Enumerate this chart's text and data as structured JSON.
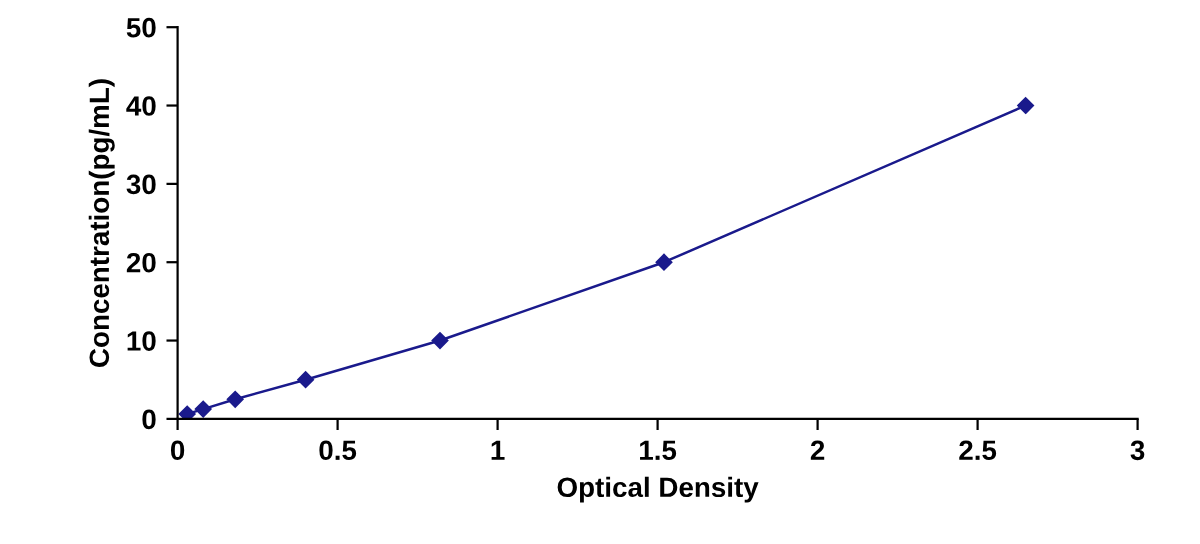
{
  "chart_data": {
    "type": "line",
    "xlabel": "Optical Density",
    "ylabel": "Concentration(pg/mL)",
    "x": [
      0.03,
      0.08,
      0.18,
      0.4,
      0.82,
      1.52,
      2.65
    ],
    "series": [
      {
        "color": "#1a1a8c",
        "values": [
          0.625,
          1.25,
          2.5,
          5,
          10,
          20,
          40
        ]
      }
    ],
    "marker": "diamond",
    "line_style": "solid",
    "grid": false,
    "legend": false,
    "xlim": [
      0,
      3
    ],
    "xticks": [
      0,
      0.5,
      1,
      1.5,
      2,
      2.5,
      3
    ],
    "ylim": [
      0,
      50
    ],
    "yticks": [
      0,
      10,
      20,
      30,
      40,
      50
    ]
  }
}
